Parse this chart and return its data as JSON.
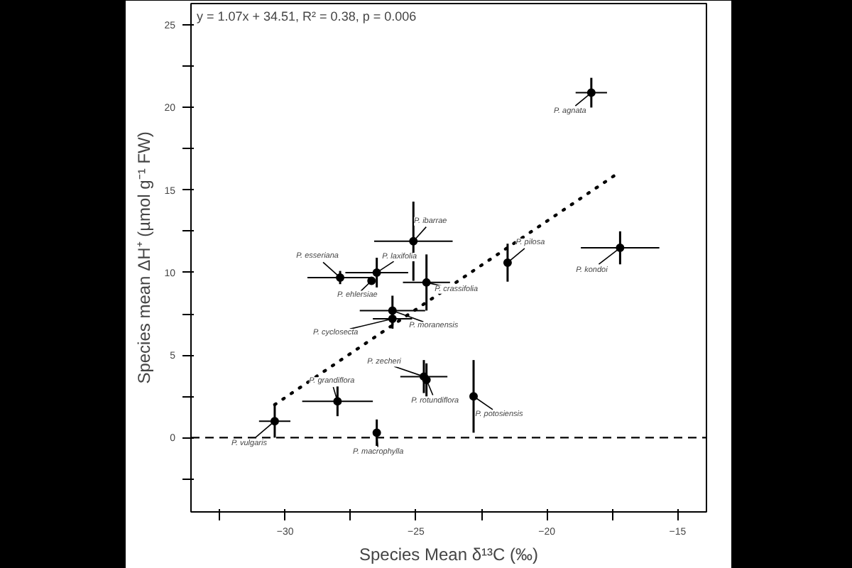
{
  "chart_data": {
    "type": "scatter",
    "xlabel": "Species Mean δ¹³C (‰)",
    "ylabel": "Species mean ΔH⁺ (µmol g⁻¹ FW)",
    "xlim": [
      -33.6,
      -13.9
    ],
    "ylim": [
      -4.5,
      26.3
    ],
    "xticks": [
      {
        "value": -32.5,
        "label": null
      },
      -30,
      {
        "value": -27.5,
        "label": null
      },
      -25,
      {
        "value": -22.5,
        "label": null
      },
      -20,
      {
        "value": -17.5,
        "label": null
      },
      -15
    ],
    "yticks": [
      {
        "value": -2.5,
        "label": null
      },
      0,
      {
        "value": 2.5,
        "label": null
      },
      5,
      {
        "value": 7.5,
        "label": null
      },
      10,
      {
        "value": 12.5,
        "label": null
      },
      15,
      {
        "value": 17.5,
        "label": null
      },
      20,
      {
        "value": 22.5,
        "label": null
      },
      25
    ],
    "grid": false,
    "series": [
      {
        "color": "#000000",
        "marker": "circle",
        "x": [
          -18.3,
          -17.2,
          -21.5,
          -25.1,
          -26.5,
          -27.9,
          -26.7,
          -24.6,
          -25.9,
          -25.9,
          -24.7,
          -24.6,
          -22.8,
          -28.0,
          -30.4,
          -26.5
        ],
        "values": [
          20.9,
          11.5,
          10.6,
          11.9,
          10.0,
          9.7,
          9.5,
          9.4,
          7.7,
          7.2,
          3.7,
          3.5,
          2.5,
          2.2,
          1.0,
          0.3
        ],
        "errors": [
          0.9,
          1.0,
          1.15,
          2.4,
          0.9,
          0.4,
          null,
          1.7,
          0.9,
          0.6,
          1.0,
          1.0,
          2.2,
          0.9,
          1.0,
          0.8
        ],
        "xerrors": [
          0.6,
          1.5,
          null,
          1.5,
          1.2,
          1.25,
          null,
          0.9,
          1.25,
          0.75,
          0.9,
          null,
          null,
          1.35,
          0.6,
          null
        ]
      },
      {
        "type": "line",
        "color": "#000000",
        "marker": "none",
        "line_style": "dotted",
        "x": [
          -30.4,
          -17.3
        ],
        "values": [
          2.0,
          16.0
        ]
      }
    ],
    "ref_lines": [
      {
        "axis": "y",
        "value": 0,
        "color": "#000000",
        "line_style": "dashed"
      }
    ],
    "annotations": [
      "y = 1.07x + 34.51, R² = 0.38, p = 0.006",
      {
        "text": "P. agnata",
        "x": -18.3,
        "y": 20.9
      },
      {
        "text": "P. kondoi",
        "x": -17.2,
        "y": 11.5
      },
      {
        "text": "P. pilosa",
        "x": -21.5,
        "y": 10.6
      },
      {
        "text": "P. ibarrae",
        "x": -25.1,
        "y": 11.9
      },
      {
        "text": "P. laxifolia",
        "x": -26.5,
        "y": 10.0
      },
      {
        "text": "P. esseriana",
        "x": -27.9,
        "y": 9.7
      },
      {
        "text": "P. ehlersiae",
        "x": -26.7,
        "y": 9.5
      },
      {
        "text": "P. crassifolia",
        "x": -24.6,
        "y": 9.4
      },
      {
        "text": "P. moranensis",
        "x": -25.9,
        "y": 7.7
      },
      {
        "text": "P. cyclosecta",
        "x": -25.9,
        "y": 7.2
      },
      {
        "text": "P. zecheri",
        "x": -24.7,
        "y": 3.7
      },
      {
        "text": "P. rotundiflora",
        "x": -24.6,
        "y": 3.5
      },
      {
        "text": "P. potosiensis",
        "x": -22.8,
        "y": 2.5
      },
      {
        "text": "P. grandiflora",
        "x": -28.0,
        "y": 2.2
      },
      {
        "text": "P. vulgaris",
        "x": -30.4,
        "y": 1.0
      },
      {
        "text": "P. macrophylla",
        "x": -26.5,
        "y": 0.3
      }
    ]
  }
}
